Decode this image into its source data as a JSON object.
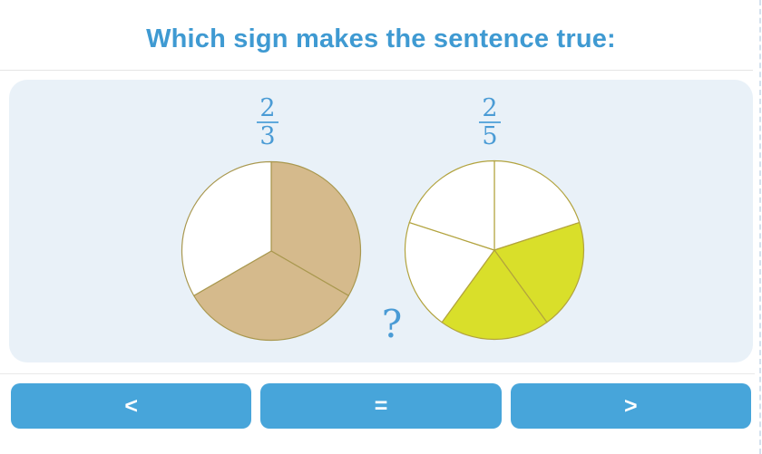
{
  "title": "Which sign makes the sentence true:",
  "problem": {
    "left_fraction": {
      "numerator": "2",
      "denominator": "3"
    },
    "right_fraction": {
      "numerator": "2",
      "denominator": "5"
    },
    "unknown_sign": "?"
  },
  "chart_data": [
    {
      "type": "pie",
      "title": "2/3",
      "slices_total": 3,
      "shaded_slice_indexes": [
        0,
        1
      ],
      "start_angle_deg": 0,
      "direction": "clockwise",
      "colors": {
        "shaded": "#d5ba8c",
        "unshaded": "#ffffff",
        "stroke": "#a9984f"
      }
    },
    {
      "type": "pie",
      "title": "2/5",
      "slices_total": 5,
      "shaded_slice_indexes": [
        1,
        2
      ],
      "start_angle_deg": 0,
      "direction": "clockwise",
      "colors": {
        "shaded": "#d9df2a",
        "unshaded": "#ffffff",
        "stroke": "#b2a33e"
      }
    }
  ],
  "answer_buttons": [
    {
      "label": "<"
    },
    {
      "label": "="
    },
    {
      "label": ">"
    }
  ],
  "colors": {
    "title_text": "#3f9ad2",
    "fraction_text": "#4a9bd5",
    "panel_background": "#e9f1f8",
    "button_background": "#47a5da",
    "button_text": "#ffffff",
    "divider": "#e5e5e5"
  }
}
